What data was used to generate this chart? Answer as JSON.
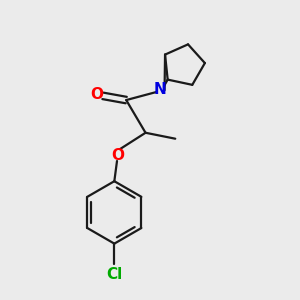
{
  "background_color": "#ebebeb",
  "bond_color": "#1a1a1a",
  "atom_colors": {
    "O": "#ff0000",
    "N": "#0000e0",
    "Cl": "#00aa00",
    "C": "#1a1a1a"
  },
  "font_size": 11,
  "line_width": 1.6,
  "figsize": [
    3.0,
    3.0
  ],
  "dpi": 100
}
